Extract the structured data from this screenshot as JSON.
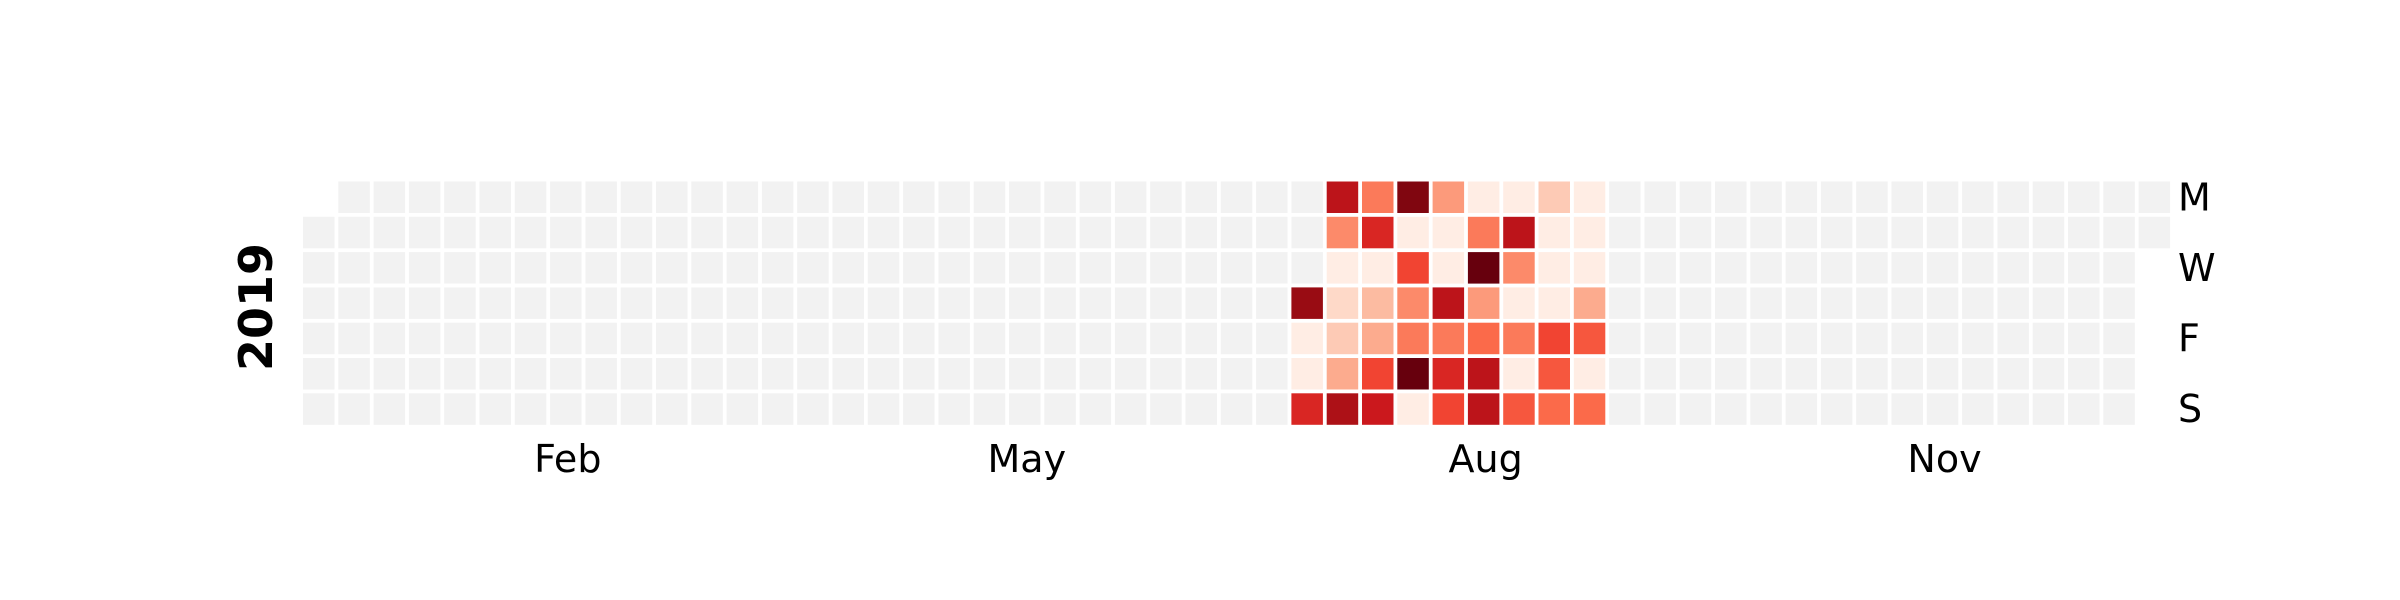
{
  "chart_data": {
    "type": "heatmap",
    "subtype": "calendar",
    "year": "2019",
    "start_date": "2019-01-01",
    "week_start": "Monday",
    "month_labels": [
      {
        "label": "Feb",
        "week": 7
      },
      {
        "label": "May",
        "week": 20
      },
      {
        "label": "Aug",
        "week": 33
      },
      {
        "label": "Nov",
        "week": 46
      }
    ],
    "day_labels": [
      {
        "label": "M",
        "weekday": 0
      },
      {
        "label": "W",
        "weekday": 2
      },
      {
        "label": "F",
        "weekday": 4
      },
      {
        "label": "S",
        "weekday": 6
      }
    ],
    "colormap": "Reds",
    "empty_color": "#f2f2f2",
    "scale": {
      "min": 0,
      "max": 10
    },
    "active_weeks": [
      28,
      37
    ],
    "values_by_week": {
      "28": [
        null,
        null,
        null,
        9,
        0.5,
        0.5,
        7
      ],
      "29": [
        8,
        4,
        0.5,
        1.5,
        2,
        3,
        8.5
      ],
      "30": [
        4.5,
        7,
        0.5,
        2.5,
        3,
        6,
        7.5
      ],
      "31": [
        9.5,
        0.5,
        6,
        4,
        4.5,
        10,
        0.5
      ],
      "32": [
        3.5,
        0.5,
        0.5,
        8,
        4.5,
        7,
        6
      ],
      "33": [
        0.5,
        4.5,
        10,
        3.5,
        5,
        8,
        8
      ],
      "34": [
        0.5,
        8,
        4,
        0.5,
        4.5,
        0.5,
        5.5
      ],
      "35": [
        2,
        0.5,
        0.5,
        0.5,
        6,
        5.5,
        5
      ],
      "36": [
        0.5,
        0.5,
        0.5,
        3,
        5.5,
        0.5,
        5
      ]
    }
  }
}
